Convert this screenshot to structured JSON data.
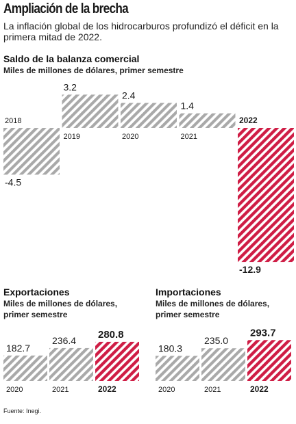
{
  "header": {
    "title": "Ampliación de la brecha",
    "subtitle": "La inflación global de los hidrocarburos profundizó el déficit en la primera mitad de 2022."
  },
  "colors": {
    "gray_stripe": "#a9a9a9",
    "red_stripe": "#cf1d45",
    "background": "#ffffff"
  },
  "source": "Fuente: Inegi.",
  "chart_data": [
    {
      "type": "bar",
      "title": "Saldo de la balanza comercial",
      "subtitle": "Miles de millones de dólares, primer semestre",
      "categories": [
        "2018",
        "2019",
        "2020",
        "2021",
        "2022"
      ],
      "values": [
        -4.5,
        3.2,
        2.4,
        1.4,
        -12.9
      ],
      "value_labels": [
        "-4.5",
        "3.2",
        "2.4",
        "1.4",
        "-12.9"
      ],
      "highlight": "2022",
      "ylim": [
        -12.9,
        3.2
      ]
    },
    {
      "type": "bar",
      "title": "Exportaciones",
      "subtitle_lines": [
        "Miles de millones de dólares,",
        "primer semestre"
      ],
      "categories": [
        "2020",
        "2021",
        "2022"
      ],
      "values": [
        182.7,
        236.4,
        280.8
      ],
      "value_labels": [
        "182.7",
        "236.4",
        "280.8"
      ],
      "highlight": "2022"
    },
    {
      "type": "bar",
      "title": "Importaciones",
      "subtitle_lines": [
        "Miles de millones de dólares,",
        "primer semestre"
      ],
      "categories": [
        "2020",
        "2021",
        "2022"
      ],
      "values": [
        180.3,
        235.0,
        293.7
      ],
      "value_labels": [
        "180.3",
        "235.0",
        "293.7"
      ],
      "highlight": "2022"
    }
  ]
}
